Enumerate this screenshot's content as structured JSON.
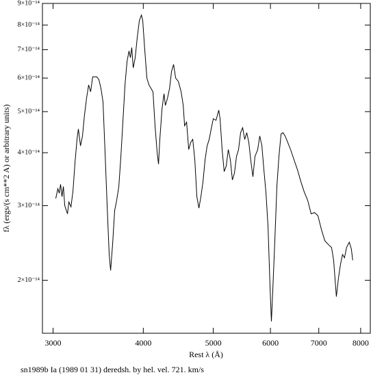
{
  "chart_data": {
    "type": "line",
    "x_label": "Rest λ (Å)",
    "y_label": "fλ (ergs/(s cm**2 A) or arbitrary units)",
    "caption": "sn1989b Ia (1989 01 31) deredsh. by hel. vel.   721. km/s",
    "x_log": true,
    "y_log": true,
    "xlim": [
      2900,
      8250
    ],
    "ylim": [
      1.5e-14,
      9e-14
    ],
    "xticks": [
      3000,
      4000,
      5000,
      6000,
      7000,
      8000
    ],
    "yticks": [
      {
        "value": 2e-14,
        "label": "2×10⁻¹⁴"
      },
      {
        "value": 3e-14,
        "label": "3×10⁻¹⁴"
      },
      {
        "value": 4e-14,
        "label": "4×10⁻¹⁴"
      },
      {
        "value": 5e-14,
        "label": "5×10⁻¹⁴"
      },
      {
        "value": 6e-14,
        "label": "6×10⁻¹⁴"
      },
      {
        "value": 7e-14,
        "label": "7×10⁻¹⁴"
      },
      {
        "value": 8e-14,
        "label": "8×10⁻¹⁴"
      },
      {
        "value": 9e-14,
        "label": "9×10⁻¹⁴"
      }
    ],
    "color": "#000000",
    "x": [
      3026,
      3046,
      3060,
      3073,
      3087,
      3100,
      3114,
      3141,
      3155,
      3176,
      3197,
      3217,
      3238,
      3252,
      3274,
      3295,
      3316,
      3338,
      3360,
      3382,
      3404,
      3449,
      3472,
      3495,
      3518,
      3541,
      3565,
      3588,
      3604,
      3627,
      3651,
      3675,
      3700,
      3724,
      3748,
      3773,
      3798,
      3822,
      3839,
      3856,
      3873,
      3898,
      3924,
      3950,
      3976,
      3993,
      4020,
      4046,
      4073,
      4126,
      4153,
      4181,
      4199,
      4217,
      4246,
      4273,
      4292,
      4320,
      4349,
      4377,
      4406,
      4435,
      4474,
      4513,
      4543,
      4563,
      4592,
      4623,
      4653,
      4683,
      4714,
      4745,
      4776,
      4807,
      4839,
      4871,
      4903,
      4935,
      4967,
      5000,
      5044,
      5088,
      5110,
      5143,
      5177,
      5211,
      5245,
      5280,
      5314,
      5349,
      5384,
      5420,
      5455,
      5491,
      5527,
      5563,
      5600,
      5637,
      5674,
      5711,
      5761,
      5799,
      5838,
      5876,
      5915,
      5954,
      5993,
      6019,
      6046,
      6085,
      6125,
      6165,
      6206,
      6246,
      6287,
      6329,
      6398,
      6468,
      6539,
      6611,
      6683,
      6757,
      6830,
      6905,
      6981,
      7057,
      7135,
      7213,
      7291,
      7339,
      7404,
      7452,
      7501,
      7550,
      7599,
      7649,
      7716,
      7766,
      7800
    ],
    "values": [
      3.12e-14,
      3.29e-14,
      3.21e-14,
      3.37e-14,
      3.15e-14,
      3.33e-14,
      3e-14,
      2.87e-14,
      3.06e-14,
      2.98e-14,
      3.26e-14,
      3.78e-14,
      4.3e-14,
      4.55e-14,
      4.15e-14,
      4.38e-14,
      4.9e-14,
      5.37e-14,
      5.78e-14,
      5.57e-14,
      6.04e-14,
      6.04e-14,
      5.95e-14,
      5.67e-14,
      5.27e-14,
      4e-14,
      2.98e-14,
      2.3e-14,
      2.11e-14,
      2.43e-14,
      2.92e-14,
      3.09e-14,
      3.33e-14,
      3.92e-14,
      4.72e-14,
      5.78e-14,
      6.57e-14,
      6.95e-14,
      6.7e-14,
      7.08e-14,
      6.34e-14,
      6.7e-14,
      7.48e-14,
      8.2e-14,
      8.45e-14,
      8.2e-14,
      6.95e-14,
      6e-14,
      5.78e-14,
      5.57e-14,
      4.63e-14,
      4e-14,
      3.76e-14,
      4.3e-14,
      5.08e-14,
      5.51e-14,
      5.17e-14,
      5.37e-14,
      5.67e-14,
      6.22e-14,
      6.46e-14,
      6e-14,
      5.89e-14,
      5.57e-14,
      5.17e-14,
      4.63e-14,
      4.72e-14,
      4.07e-14,
      4.23e-14,
      4.3e-14,
      3.85e-14,
      3.15e-14,
      2.96e-14,
      3.15e-14,
      3.42e-14,
      3.85e-14,
      4.15e-14,
      4.3e-14,
      4.55e-14,
      4.81e-14,
      4.77e-14,
      5.04e-14,
      4.81e-14,
      4.07e-14,
      3.61e-14,
      3.72e-14,
      4.07e-14,
      3.85e-14,
      3.45e-14,
      3.58e-14,
      3.92e-14,
      4.07e-14,
      4.46e-14,
      4.58e-14,
      4.3e-14,
      4.46e-14,
      4.23e-14,
      3.82e-14,
      3.51e-14,
      3.92e-14,
      4.07e-14,
      4.38e-14,
      4.15e-14,
      3.65e-14,
      3.21e-14,
      2.67e-14,
      1.91e-14,
      1.6e-14,
      1.91e-14,
      2.48e-14,
      3.33e-14,
      3.92e-14,
      4.43e-14,
      4.46e-14,
      4.38e-14,
      4.26e-14,
      4.07e-14,
      3.85e-14,
      3.65e-14,
      3.42e-14,
      3.23e-14,
      3.09e-14,
      2.87e-14,
      2.89e-14,
      2.84e-14,
      2.64e-14,
      2.48e-14,
      2.43e-14,
      2.39e-14,
      2.23e-14,
      1.83e-14,
      2.02e-14,
      2.18e-14,
      2.3e-14,
      2.26e-14,
      2.39e-14,
      2.46e-14,
      2.37e-14,
      2.23e-14
    ]
  }
}
